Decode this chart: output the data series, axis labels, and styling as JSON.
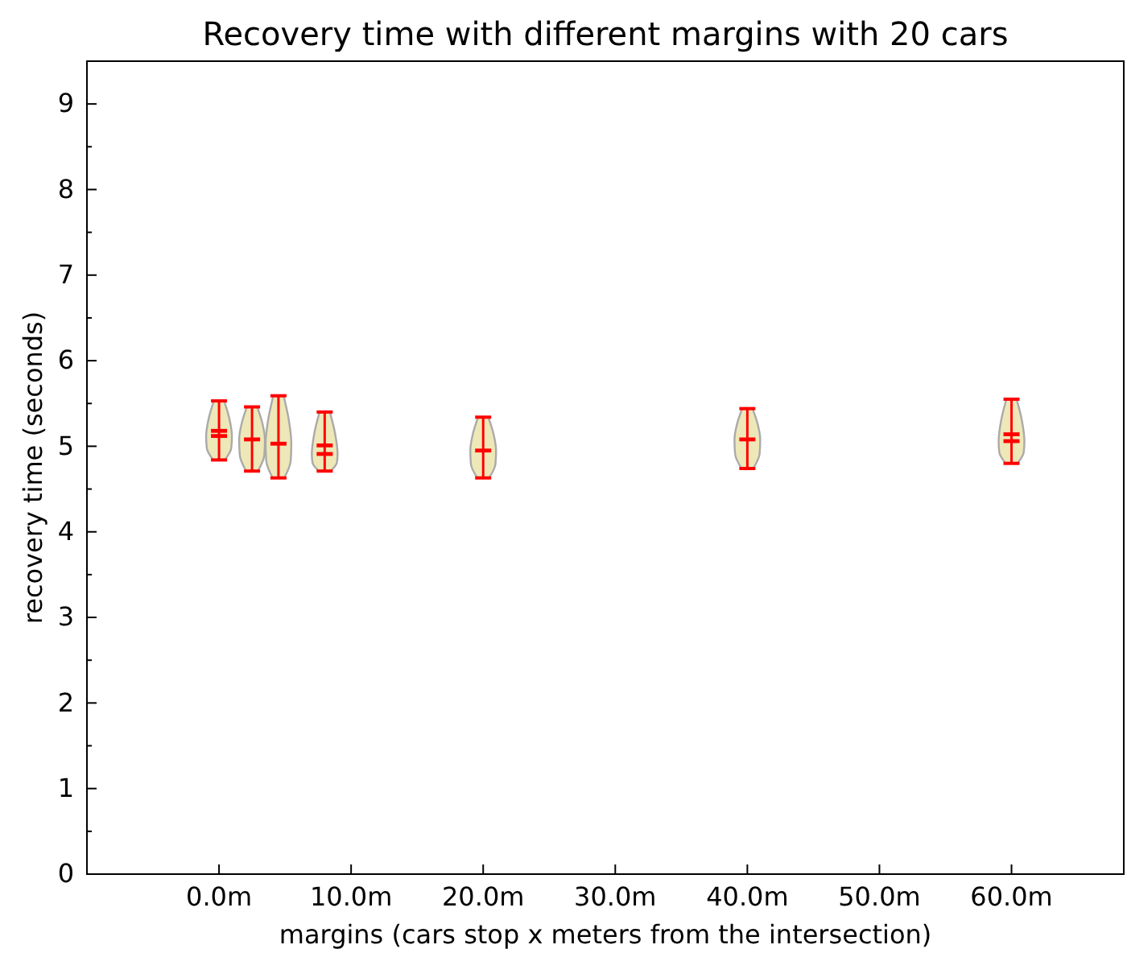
{
  "chart_data": {
    "type": "scatter",
    "title": "Recovery time with different margins with 20 cars",
    "xlabel": "margins (cars stop x meters from the intersection)",
    "ylabel": "recovery time (seconds)",
    "x": [
      0,
      2.5,
      4.5,
      8,
      20,
      40,
      60
    ],
    "series": [
      {
        "color": "#ff0000",
        "values": [
          5.12,
          5.08,
          5.03,
          4.91,
          4.95,
          5.08,
          5.06
        ],
        "errors": [
          [
            4.84,
            5.53
          ],
          [
            4.71,
            5.46
          ],
          [
            4.63,
            5.59
          ],
          [
            4.71,
            5.4
          ],
          [
            4.63,
            5.34
          ],
          [
            4.74,
            5.44
          ],
          [
            4.8,
            5.55
          ]
        ]
      },
      {
        "color": "#ff0000",
        "values": [
          5.18,
          null,
          null,
          5.01,
          null,
          null,
          5.14
        ]
      }
    ],
    "xlim": [
      -10,
      68.5
    ],
    "xticks": [
      {
        "value": 0,
        "label": "0.0m"
      },
      {
        "value": 10,
        "label": "10.0m"
      },
      {
        "value": 20,
        "label": "20.0m"
      },
      {
        "value": 30,
        "label": "30.0m"
      },
      {
        "value": 40,
        "label": "40.0m"
      },
      {
        "value": 50,
        "label": "50.0m"
      },
      {
        "value": 60,
        "label": "60.0m"
      }
    ],
    "ylim": [
      0,
      9.5
    ],
    "yticks": [
      0,
      {
        "value": 0.5,
        "label": null
      },
      1,
      {
        "value": 1.5,
        "label": null
      },
      2,
      {
        "value": 2.5,
        "label": null
      },
      3,
      {
        "value": 3.5,
        "label": null
      },
      4,
      {
        "value": 4.5,
        "label": null
      },
      5,
      {
        "value": 5.5,
        "label": null
      },
      6,
      {
        "value": 6.5,
        "label": null
      },
      7,
      {
        "value": 7.5,
        "label": null
      },
      8,
      {
        "value": 8.5,
        "label": null
      },
      9,
      {
        "value": 9.5,
        "label": null
      }
    ],
    "grid": false
  }
}
